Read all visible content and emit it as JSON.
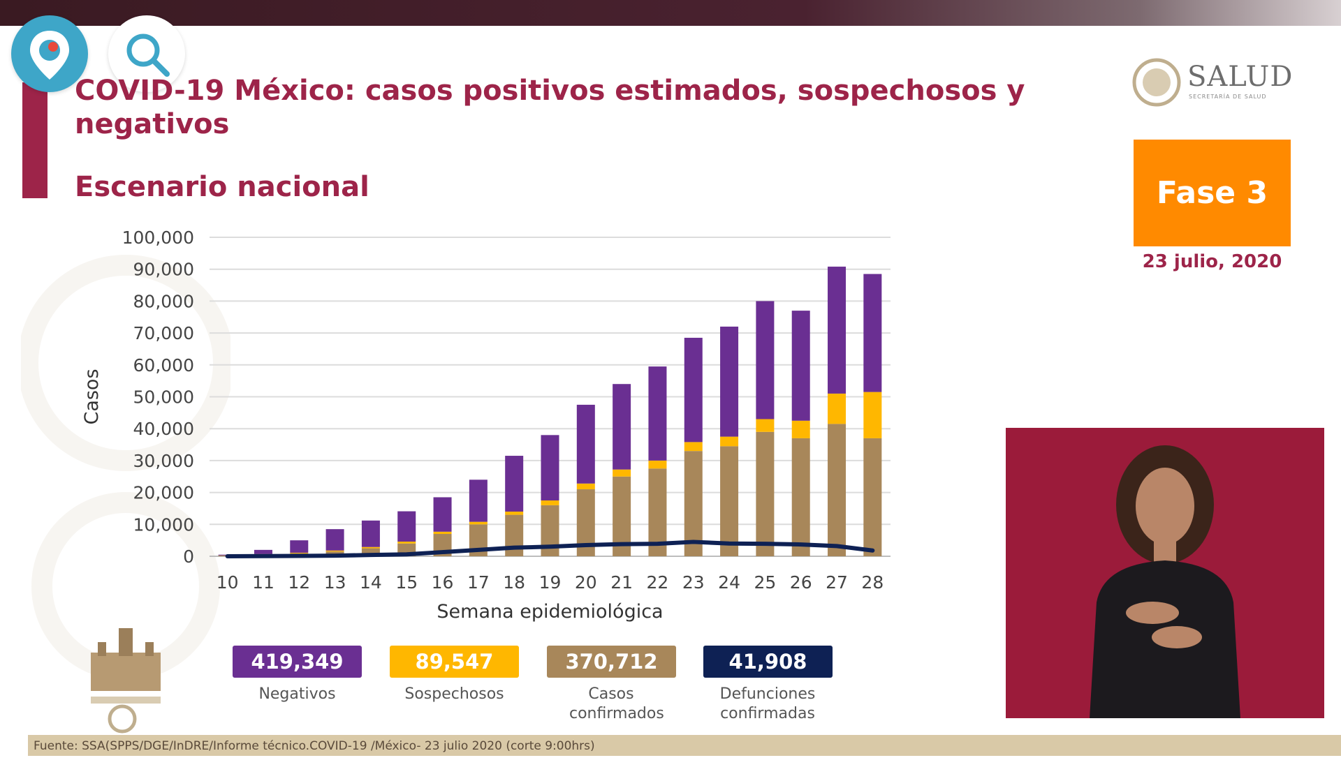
{
  "title": "COVID-19 México: casos positivos estimados, sospechosos y negativos",
  "subtitle": "Escenario nacional",
  "logo": {
    "text": "SALUD",
    "subtext": "SECRETARÍA DE SALUD"
  },
  "phase_badge": "Fase 3",
  "date": "23 julio, 2020",
  "totals": [
    {
      "value": "419,349",
      "label": "Negativos",
      "color": "#6a2f92"
    },
    {
      "value": "89,547",
      "label": "Sospechosos",
      "color": "#ffb700"
    },
    {
      "value": "370,712",
      "label": "Casos confirmados",
      "color": "#a8875a"
    },
    {
      "value": "41,908",
      "label": "Defunciones confirmadas",
      "color": "#0e2154"
    }
  ],
  "footer": "Fuente: SSA(SPPS/DGE/InDRE/Informe técnico.COVID-19 /México- 23 julio 2020 (corte 9:00hrs)",
  "icons": [
    "periscope-icon",
    "search-icon"
  ],
  "chart_data": {
    "type": "bar",
    "stacked": true,
    "categories": [
      "10",
      "11",
      "12",
      "13",
      "14",
      "15",
      "16",
      "17",
      "18",
      "19",
      "20",
      "21",
      "22",
      "23",
      "24",
      "25",
      "26",
      "27",
      "28"
    ],
    "xlabel": "Semana epidemiológica",
    "ylabel": "Casos",
    "ylim": [
      0,
      100000
    ],
    "yticks": [
      0,
      10000,
      20000,
      30000,
      40000,
      50000,
      60000,
      70000,
      80000,
      90000,
      100000
    ],
    "ytick_labels": [
      "0",
      "10,000",
      "20,000",
      "30,000",
      "40,000",
      "50,000",
      "60,000",
      "70,000",
      "80,000",
      "90,000",
      "100,000"
    ],
    "grid": true,
    "series": [
      {
        "name": "Casos confirmados",
        "color": "#a8875a",
        "values": [
          300,
          600,
          900,
          1500,
          2500,
          4000,
          7000,
          10000,
          13000,
          16000,
          21000,
          25000,
          27500,
          33000,
          34500,
          39000,
          37000,
          41500,
          37000
        ]
      },
      {
        "name": "Sospechosos",
        "color": "#ffb700",
        "values": [
          0,
          100,
          200,
          300,
          400,
          600,
          700,
          800,
          1000,
          1500,
          1800,
          2200,
          2500,
          2800,
          3000,
          4000,
          5500,
          9500,
          14500
        ]
      },
      {
        "name": "Negativos",
        "color": "#6a2f92",
        "values": [
          200,
          1300,
          3900,
          6700,
          8300,
          9500,
          10800,
          13200,
          17500,
          20500,
          24700,
          26800,
          29500,
          32700,
          34500,
          37000,
          34500,
          39800,
          37000
        ]
      }
    ],
    "line": {
      "name": "Defunciones confirmadas",
      "color": "#0e2154",
      "values": [
        0,
        50,
        100,
        200,
        400,
        600,
        1300,
        2000,
        2700,
        3000,
        3500,
        3800,
        3900,
        4500,
        4000,
        3900,
        3700,
        3200,
        1800
      ]
    }
  }
}
